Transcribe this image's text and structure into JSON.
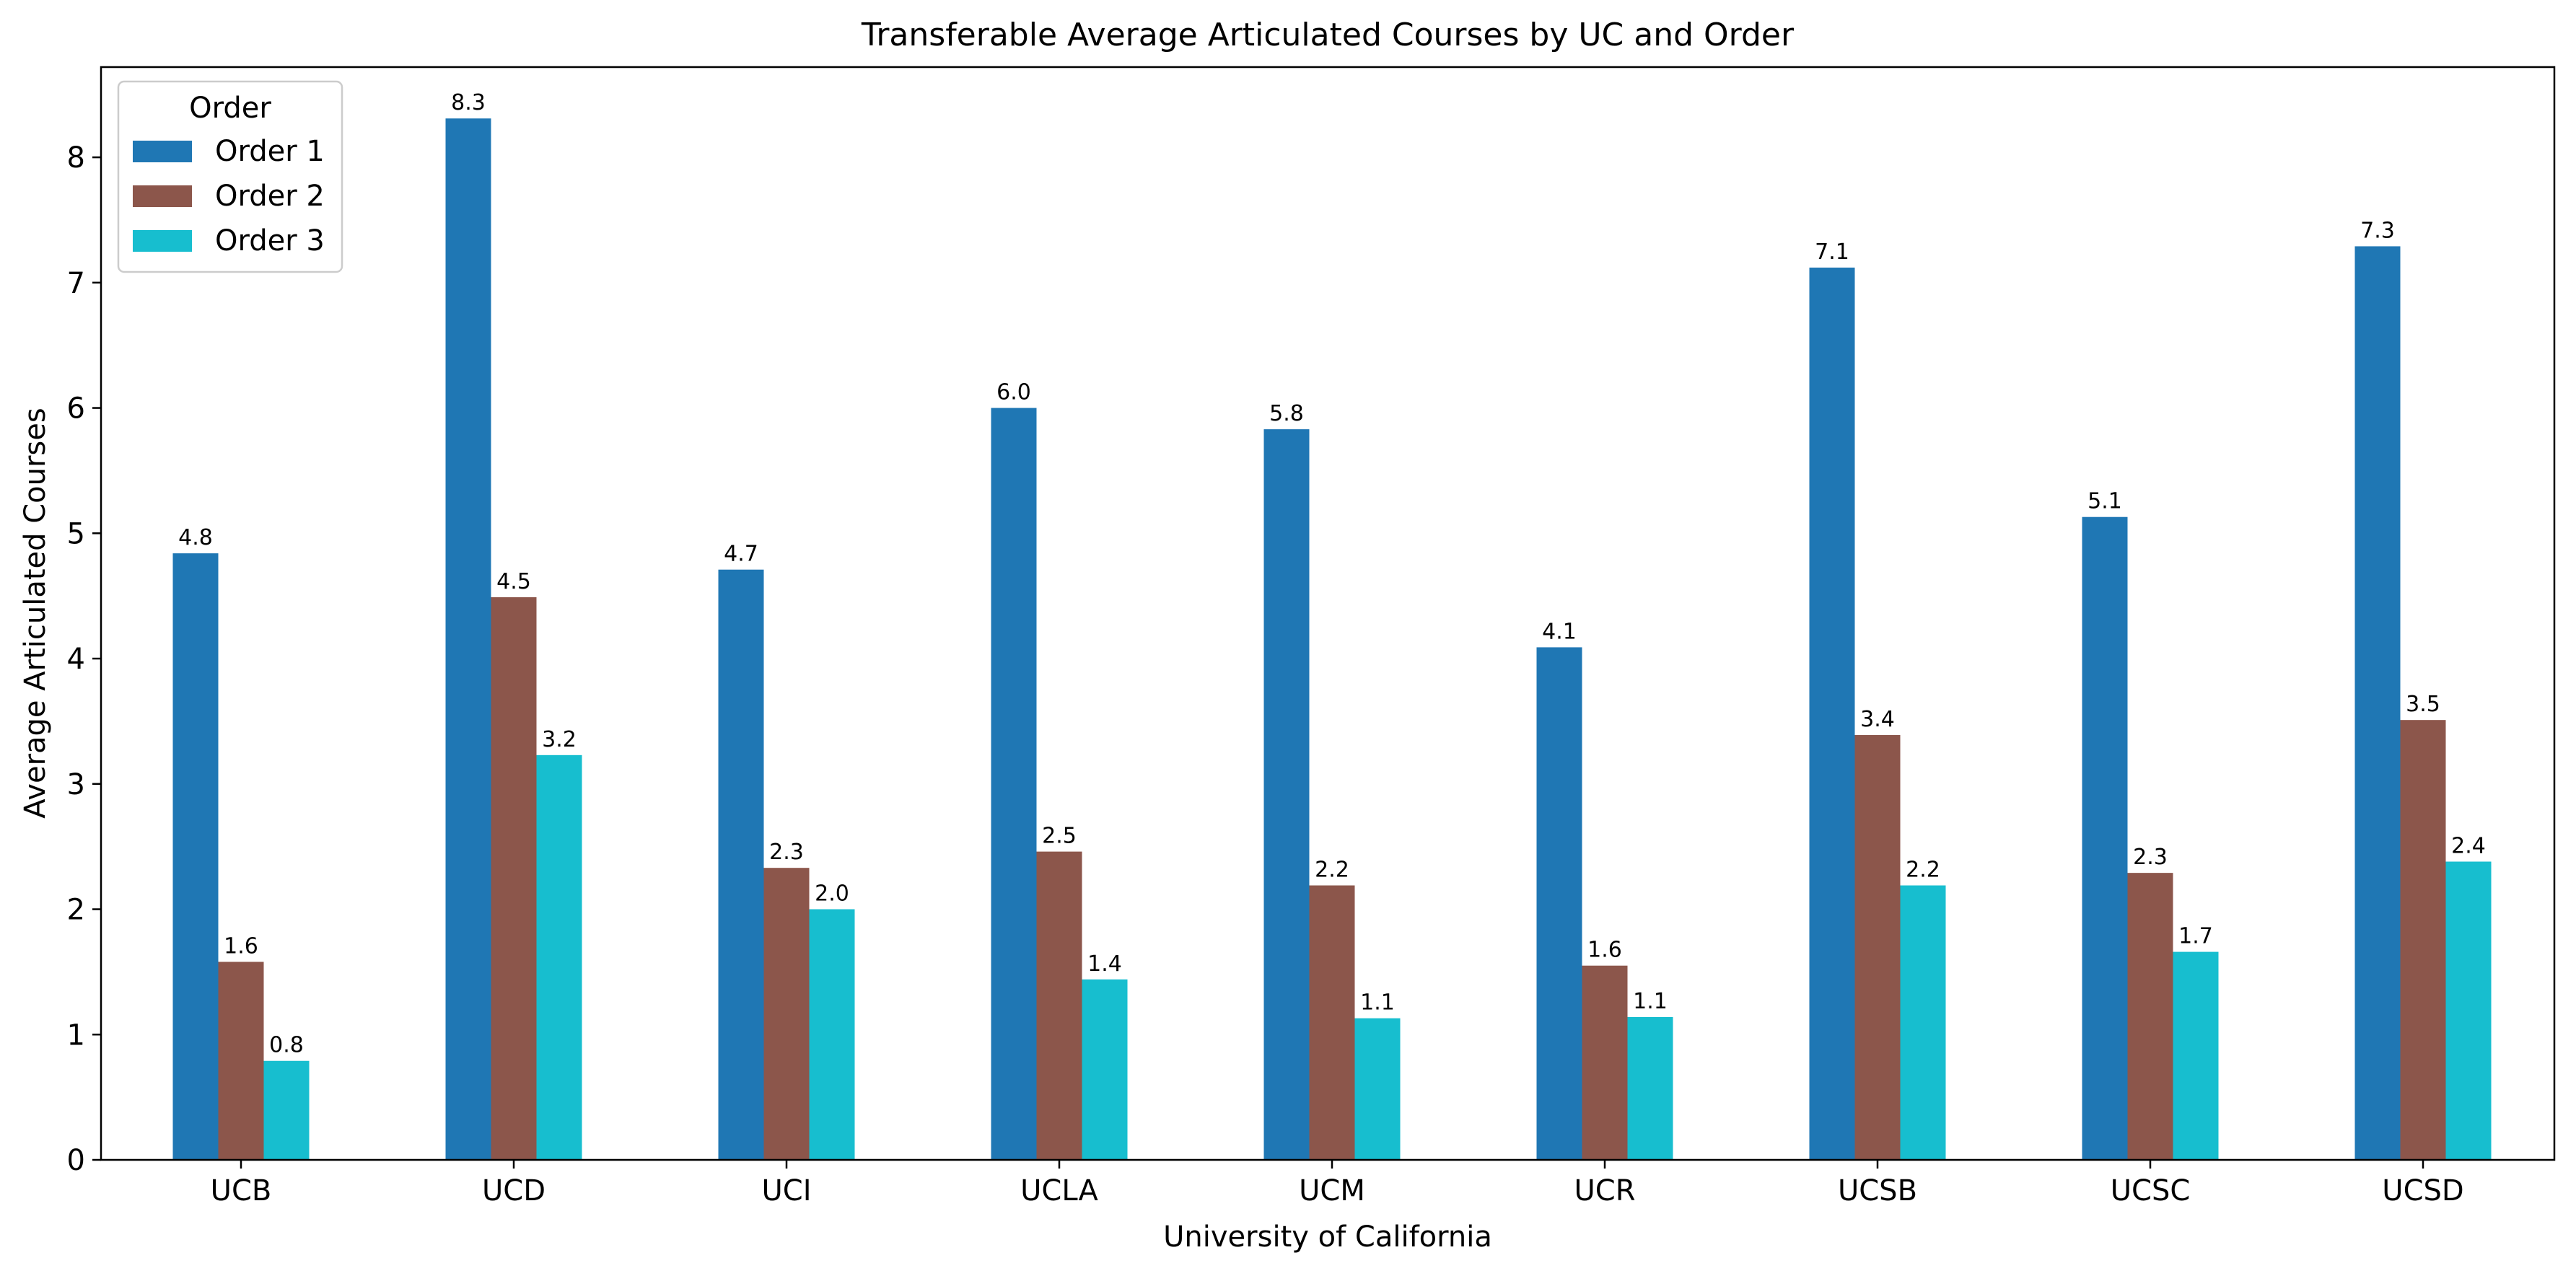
{
  "chart_data": {
    "type": "bar",
    "title": "Transferable Average Articulated Courses by UC and Order",
    "xlabel": "University of California",
    "ylabel": "Average Articulated Courses",
    "categories": [
      "UCB",
      "UCD",
      "UCI",
      "UCLA",
      "UCM",
      "UCR",
      "UCSB",
      "UCSC",
      "UCSD"
    ],
    "series": [
      {
        "name": "Order 1",
        "color": "#1f77b4",
        "values": [
          4.84,
          8.31,
          4.71,
          6.0,
          5.83,
          4.09,
          7.12,
          5.13,
          7.29
        ],
        "labels": [
          "4.8",
          "8.3",
          "4.7",
          "6.0",
          "5.8",
          "4.1",
          "7.1",
          "5.1",
          "7.3"
        ]
      },
      {
        "name": "Order 2",
        "color": "#8c564b",
        "values": [
          1.58,
          4.49,
          2.33,
          2.46,
          2.19,
          1.55,
          3.39,
          2.29,
          3.51
        ],
        "labels": [
          "1.6",
          "4.5",
          "2.3",
          "2.5",
          "2.2",
          "1.6",
          "3.4",
          "2.3",
          "3.5"
        ]
      },
      {
        "name": "Order 3",
        "color": "#17becf",
        "values": [
          0.79,
          3.23,
          2.0,
          1.44,
          1.13,
          1.14,
          2.19,
          1.66,
          2.38
        ],
        "labels": [
          "0.8",
          "3.2",
          "2.0",
          "1.4",
          "1.1",
          "1.1",
          "2.2",
          "1.7",
          "2.4"
        ]
      }
    ],
    "ylim": [
      0,
      8.72
    ],
    "yticks": [
      "0",
      "1",
      "2",
      "3",
      "4",
      "5",
      "6",
      "7",
      "8"
    ],
    "legend": {
      "title": "Order",
      "position": "top-left"
    },
    "grid": false
  }
}
